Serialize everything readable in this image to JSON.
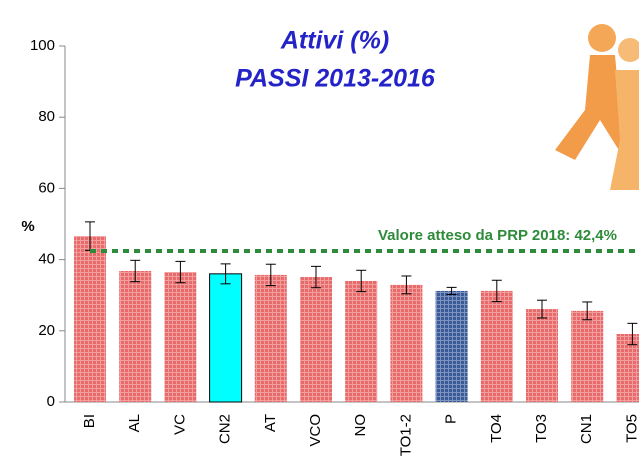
{
  "chart_data": {
    "type": "bar",
    "title": "Attivi (%)",
    "subtitle": "PASSI 2013-2016",
    "y_label": "%",
    "categories": [
      "BI",
      "AL",
      "VC",
      "CN2",
      "AT",
      "VCO",
      "NO",
      "TO1-2",
      "P",
      "TO4",
      "TO3",
      "CN1",
      "TO5"
    ],
    "values": [
      46.6,
      36.8,
      36.5,
      36.0,
      35.7,
      35.1,
      34.0,
      32.9,
      31.2,
      31.2,
      26.1,
      25.6,
      19.1
    ],
    "errors": [
      4.0,
      3.0,
      3.0,
      2.8,
      3.0,
      3.0,
      3.0,
      2.5,
      1.0,
      3.0,
      2.5,
      2.5,
      3.0
    ],
    "colors": [
      "#e86a6a",
      "#e86a6a",
      "#e86a6a",
      "#00ffff",
      "#e86a6a",
      "#e86a6a",
      "#e86a6a",
      "#e86a6a",
      "#3b5a9a",
      "#e86a6a",
      "#e86a6a",
      "#e86a6a",
      "#e86a6a"
    ],
    "target": 42.4,
    "target_color": "#2e8b3a",
    "annotation": "Valore atteso da PRP 2018: 42,4%",
    "ylim": [
      0,
      100
    ],
    "yticks": [
      0,
      20,
      40,
      60,
      80,
      100
    ]
  }
}
